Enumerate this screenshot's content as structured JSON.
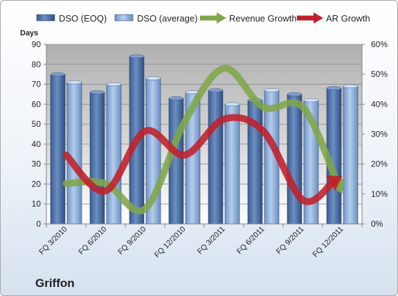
{
  "company_label": "Griffon",
  "chart_data": {
    "type": "bar",
    "categories": [
      "FQ 3/2010",
      "FQ 6/2010",
      "FQ 9/2010",
      "FQ 12/2010",
      "FQ 3/2011",
      "FQ 6/2011",
      "FQ 9/2011",
      "FQ 12/2011"
    ],
    "y_left": {
      "title": "Days",
      "range": [
        0,
        90
      ],
      "ticks": [
        0,
        10,
        20,
        30,
        40,
        50,
        60,
        70,
        80,
        90
      ]
    },
    "y_right": {
      "range": [
        0,
        60
      ],
      "ticks": [
        "0%",
        "10%",
        "20%",
        "30%",
        "40%",
        "50%",
        "60%"
      ]
    },
    "legend_position": "top",
    "series": [
      {
        "name": "DSO (EOQ)",
        "type": "bar",
        "axis": "left",
        "color": "#4a6fa5",
        "values": [
          75,
          66,
          84,
          63,
          67,
          62,
          65,
          68
        ]
      },
      {
        "name": "DSO (average)",
        "type": "bar",
        "axis": "left",
        "color": "#8fb0dc",
        "values": [
          71,
          70,
          73,
          66,
          60,
          67,
          62,
          69
        ]
      },
      {
        "name": "Revenue Growth",
        "type": "line",
        "axis": "right",
        "unit": "%",
        "color": "#7fa64a",
        "values": [
          13.5,
          13.5,
          5,
          34,
          52,
          39,
          39,
          10
        ]
      },
      {
        "name": "AR Growth",
        "type": "line",
        "axis": "right",
        "unit": "%",
        "color": "#c0202a",
        "values": [
          23,
          11,
          31,
          23,
          35,
          31,
          8,
          16
        ]
      }
    ],
    "grid": true
  }
}
